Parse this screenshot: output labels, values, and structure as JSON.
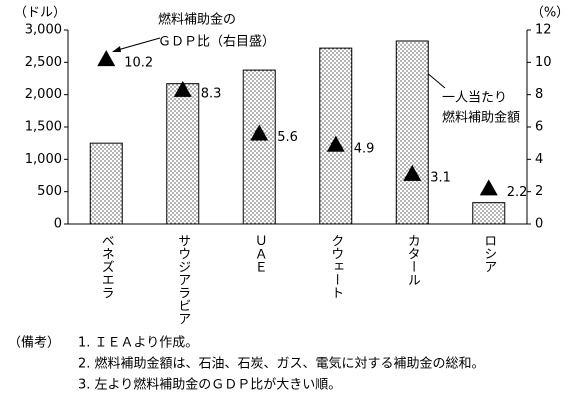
{
  "chart_data": {
    "type": "bar",
    "y_label": "（ドル）",
    "y2_label": "（%）",
    "categories": [
      "ベネズエラ",
      "サウジアラビア",
      "ＵＡＥ",
      "クウェート",
      "カタール",
      "ロシア"
    ],
    "series": [
      {
        "type": "bar",
        "color": "#000000",
        "pattern": "dots",
        "values": [
          1250,
          2170,
          2380,
          2720,
          2830,
          330
        ]
      },
      {
        "type": "scatter",
        "marker": "triangle",
        "axis": "y2",
        "color": "#000000",
        "values": [
          10.2,
          8.3,
          5.6,
          4.9,
          3.1,
          2.2
        ]
      }
    ],
    "ylim": [
      0,
      3000
    ],
    "yticks": [
      0,
      500,
      {
        "value": 1000,
        "label": "1,000"
      },
      {
        "value": 1500,
        "label": "1,500"
      },
      {
        "value": 2000,
        "label": "2,000"
      },
      {
        "value": 2500,
        "label": "2,500"
      },
      {
        "value": 3000,
        "label": "3,000"
      }
    ],
    "y2lim": [
      0,
      12
    ],
    "y2ticks": [
      0,
      2,
      4,
      6,
      8,
      10,
      12
    ],
    "annotations": [
      {
        "lines": [
          "燃料補助金の",
          "ＧＤＰ比（右目盛）"
        ]
      },
      {
        "lines": [
          "一人当たり",
          "燃料補助金額"
        ]
      }
    ],
    "notes": {
      "label": "（備考）",
      "items": [
        "1.  ＩＥＡより作成。",
        "2.  燃料補助金額は、石油、石炭、ガス、電気に対する補助金の総和。",
        "3.  左より燃料補助金のＧＤＰ比が大きい順。"
      ]
    }
  }
}
